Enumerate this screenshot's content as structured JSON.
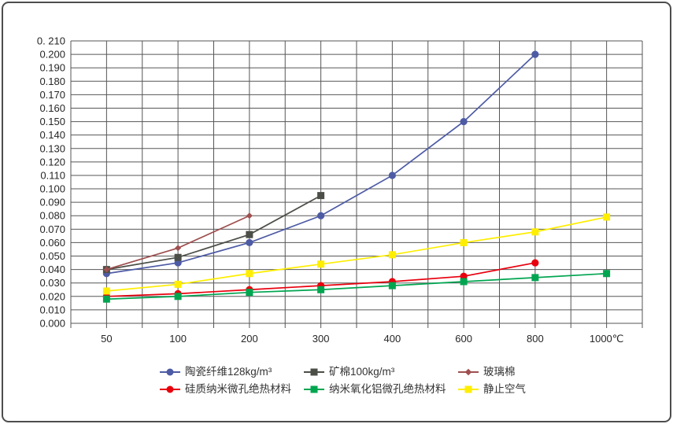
{
  "chart_data": {
    "type": "line",
    "title": "",
    "xlabel": "",
    "ylabel": "",
    "x_unit": "℃",
    "categories": [
      "50",
      "100",
      "200",
      "300",
      "400",
      "600",
      "800",
      "1000℃"
    ],
    "x_values": [
      50,
      100,
      200,
      300,
      400,
      600,
      800,
      1000
    ],
    "ylim": [
      0,
      0.21
    ],
    "y_tick_step": 0.01,
    "y_tick_labels": [
      "0.000",
      "0.010",
      "0.020",
      "0.030",
      "0.040",
      "0.050",
      "0.060",
      "0.070",
      "0.080",
      "0.090",
      "0.100",
      "0.110",
      "0.120",
      "0.130",
      "0.140",
      "0.150",
      "0.160",
      "0.170",
      "0.180",
      "0.190",
      "0.200",
      "0. 210"
    ],
    "grid": "both",
    "grid_color": "#565656",
    "text_color": "#262626",
    "legend_position": "bottom",
    "series": [
      {
        "id": "ceramic-fiber",
        "name": "陶瓷纤维128kg/m³",
        "color": "#4d5ba5",
        "marker": "circle",
        "values": [
          0.037,
          0.045,
          0.06,
          0.08,
          0.11,
          0.15,
          0.2,
          null
        ]
      },
      {
        "id": "mineral-wool",
        "name": "矿棉100kg/m³",
        "color": "#4b4f47",
        "marker": "square",
        "values": [
          0.04,
          0.049,
          0.066,
          0.095,
          null,
          null,
          null,
          null
        ]
      },
      {
        "id": "glass-wool",
        "name": "玻璃棉",
        "color": "#9f4f4f",
        "marker": "diamond",
        "values": [
          0.04,
          0.056,
          0.08,
          null,
          null,
          null,
          null,
          null
        ]
      },
      {
        "id": "silica-nano-microporous",
        "name": "硅质纳米微孔绝热材料",
        "color": "#e8000d",
        "marker": "circle",
        "values": [
          0.02,
          0.022,
          0.025,
          0.028,
          0.031,
          0.035,
          0.045,
          null
        ]
      },
      {
        "id": "nano-alumina-microporous",
        "name": "纳米氧化铝微孔绝热材料",
        "color": "#00a550",
        "marker": "square",
        "values": [
          0.018,
          0.02,
          0.023,
          0.025,
          0.028,
          0.031,
          0.034,
          0.037
        ]
      },
      {
        "id": "still-air",
        "name": "静止空气",
        "color": "#ffee00",
        "marker": "square",
        "values": [
          0.024,
          0.029,
          0.037,
          0.044,
          0.051,
          0.06,
          0.068,
          0.079
        ]
      }
    ]
  }
}
